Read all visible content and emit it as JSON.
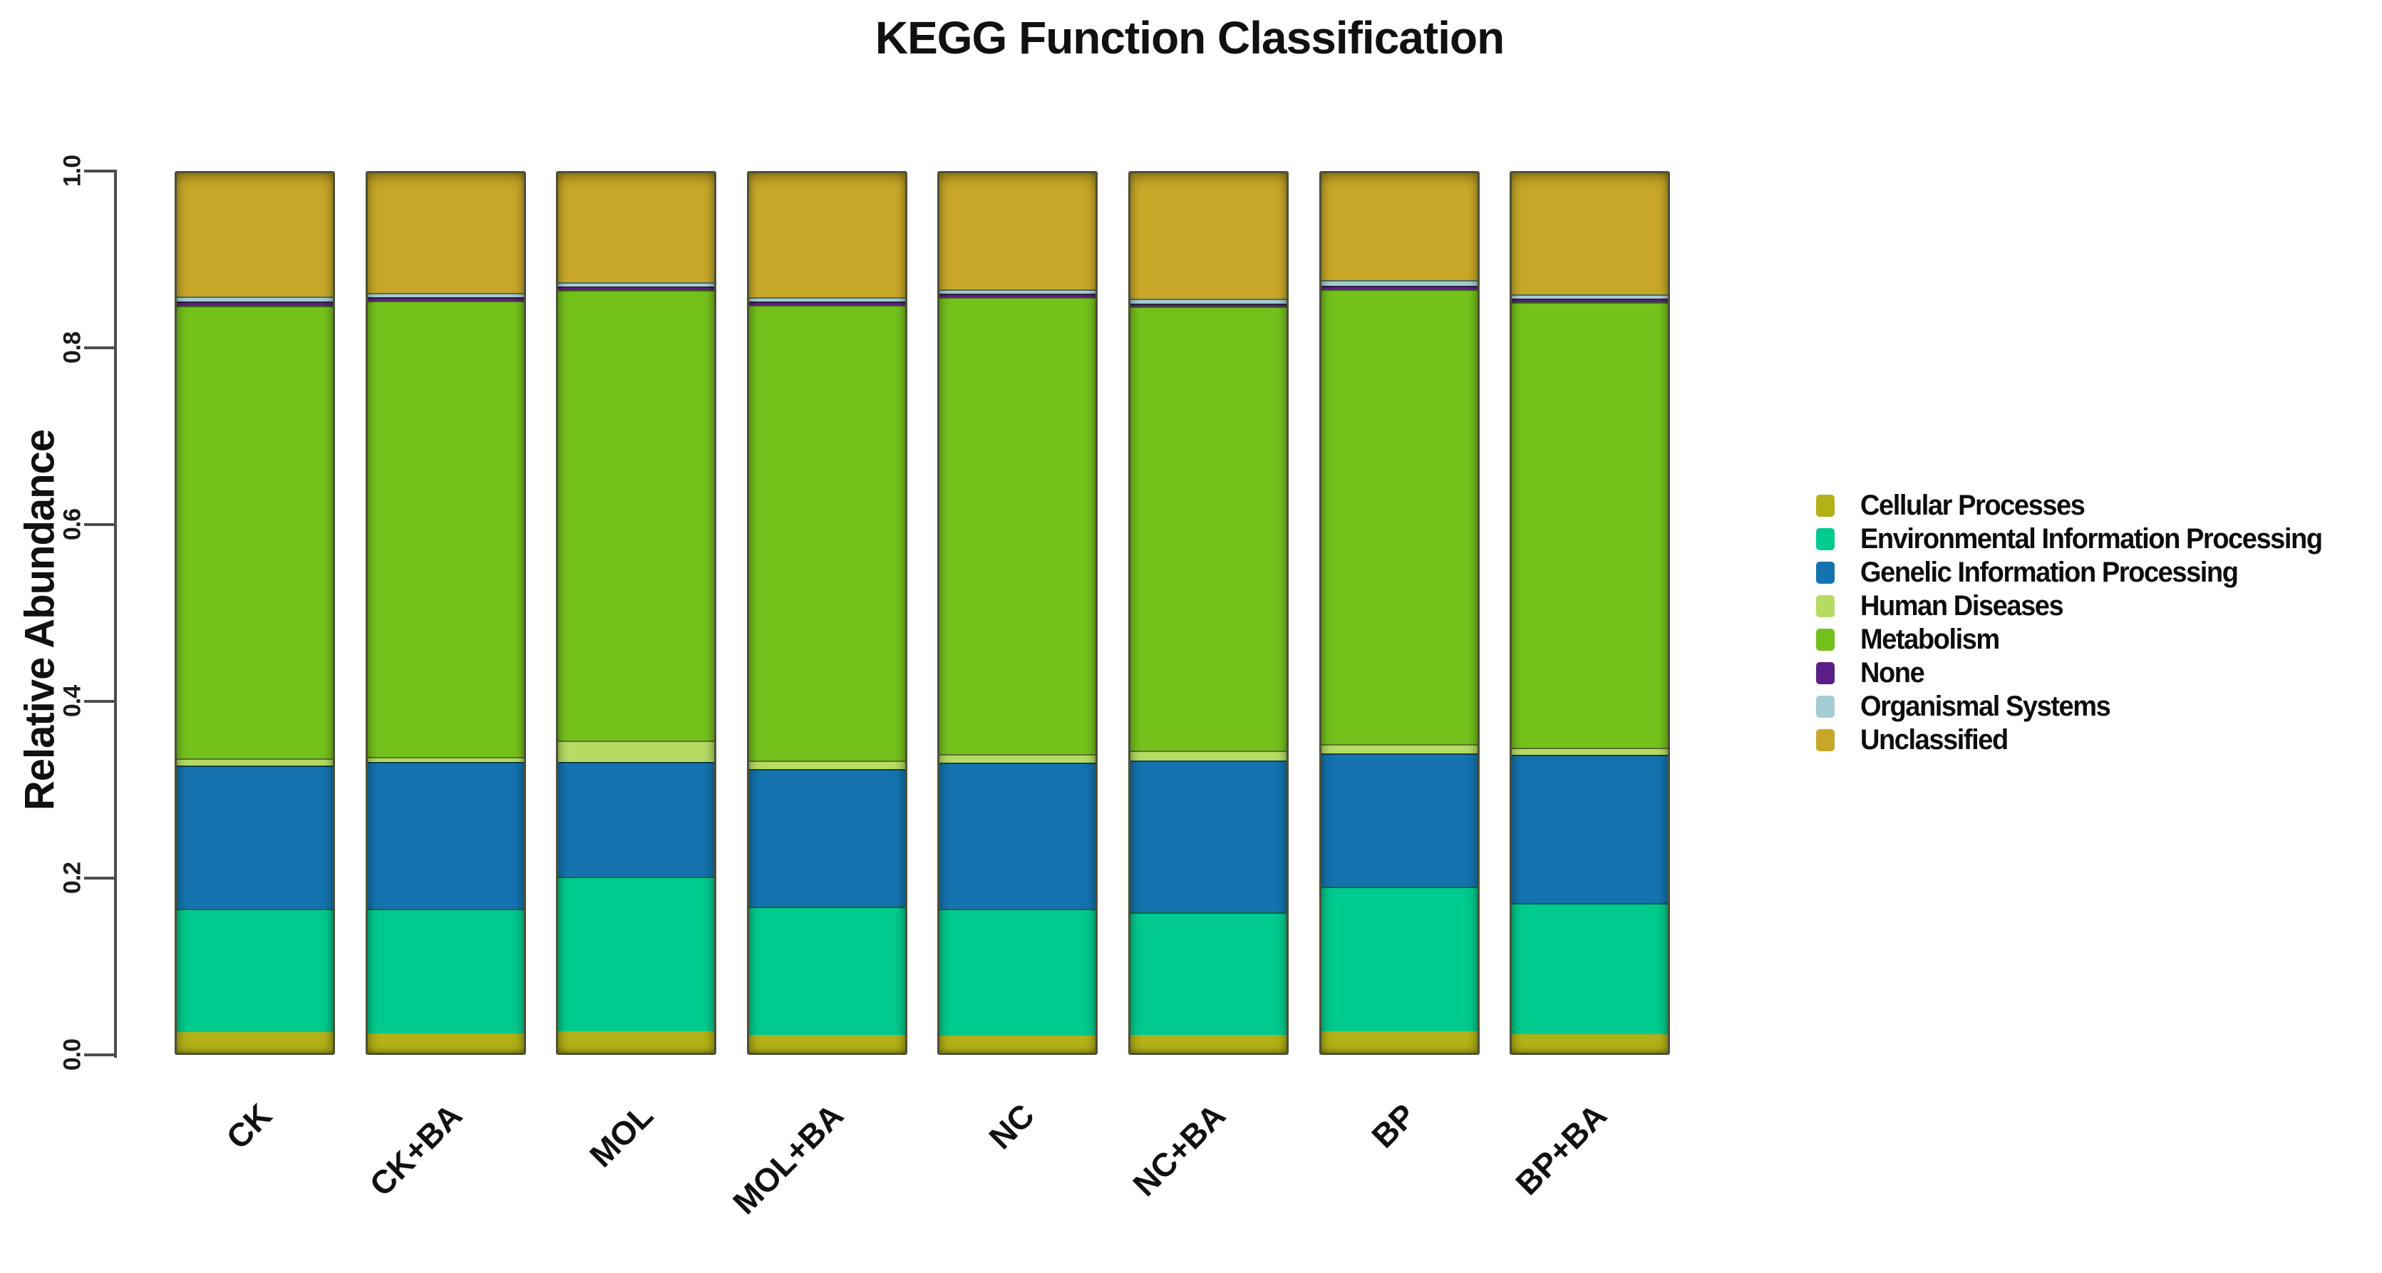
{
  "title": "KEGG Function Classification",
  "y_axis": {
    "label": "Relative Abundance",
    "ticks": [
      "0.0",
      "0.2",
      "0.4",
      "0.6",
      "0.8",
      "1.0"
    ]
  },
  "chart_data": {
    "type": "bar",
    "stacked": true,
    "title": "KEGG Function Classification",
    "xlabel": "",
    "ylabel": "Relative Abundance",
    "ylim": [
      0,
      1
    ],
    "grid": false,
    "legend_position": "right",
    "categories": [
      "CK",
      "CK+BA",
      "MOL",
      "MOL+BA",
      "NC",
      "NC+BA",
      "BP",
      "BP+BA"
    ],
    "series": [
      {
        "name": "Cellular Processes",
        "color": "#b2b118",
        "values": [
          0.023,
          0.022,
          0.024,
          0.02,
          0.019,
          0.02,
          0.024,
          0.021
        ]
      },
      {
        "name": "Environmental Information Processing",
        "color": "#00ca8d",
        "values": [
          0.14,
          0.141,
          0.175,
          0.145,
          0.144,
          0.139,
          0.164,
          0.148
        ]
      },
      {
        "name": "Genelic Information Processing",
        "color": "#1473ae",
        "values": [
          0.162,
          0.166,
          0.13,
          0.156,
          0.165,
          0.172,
          0.151,
          0.168
        ]
      },
      {
        "name": "Human Diseases",
        "color": "#b5db63",
        "values": [
          0.008,
          0.006,
          0.024,
          0.01,
          0.01,
          0.011,
          0.01,
          0.008
        ]
      },
      {
        "name": "Metabolism",
        "color": "#74c11c",
        "values": [
          0.512,
          0.516,
          0.51,
          0.515,
          0.517,
          0.502,
          0.515,
          0.504
        ]
      },
      {
        "name": "None",
        "color": "#5b1e86",
        "values": [
          0.005,
          0.004,
          0.004,
          0.004,
          0.004,
          0.004,
          0.004,
          0.004
        ]
      },
      {
        "name": "Organismal Systems",
        "color": "#a4cdd3",
        "values": [
          0.006,
          0.005,
          0.005,
          0.005,
          0.005,
          0.005,
          0.006,
          0.005
        ]
      },
      {
        "name": "Unclassified",
        "color": "#c8a728",
        "values": [
          0.144,
          0.14,
          0.128,
          0.145,
          0.136,
          0.147,
          0.126,
          0.142
        ]
      }
    ]
  }
}
